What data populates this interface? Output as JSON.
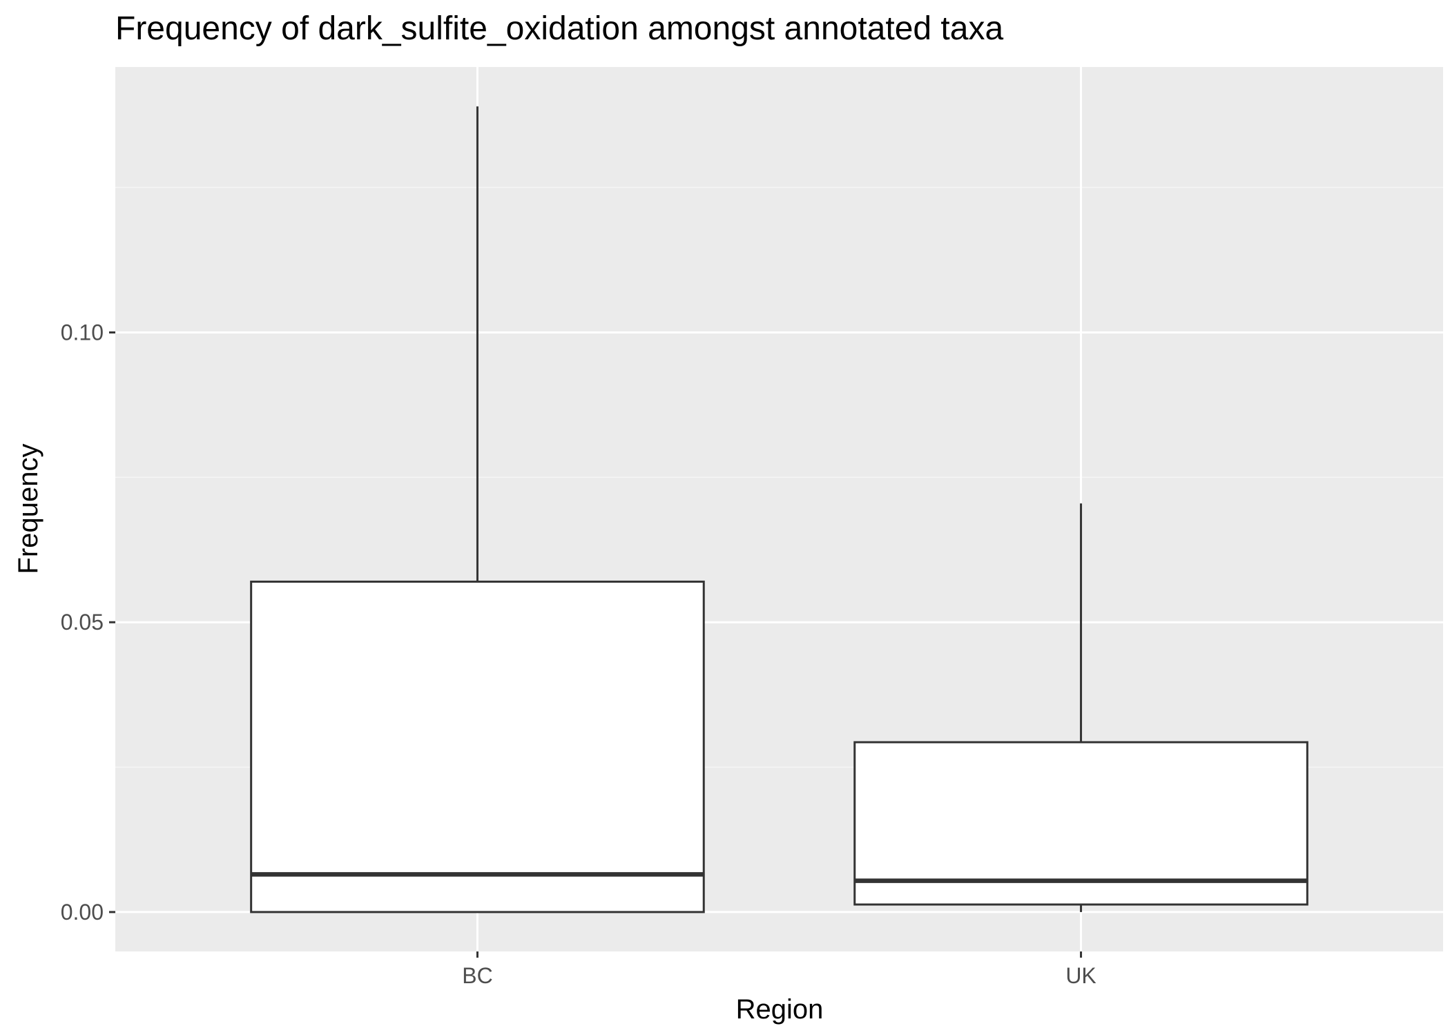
{
  "chart_data": {
    "type": "boxplot",
    "title": "Frequency of dark_sulfite_oxidation amongst annotated taxa",
    "xlabel": "Region",
    "ylabel": "Frequency",
    "categories": [
      "BC",
      "UK"
    ],
    "boxes": [
      {
        "category": "BC",
        "min": 0.0,
        "q1": 0.0,
        "median": 0.0065,
        "q3": 0.057,
        "max": 0.139
      },
      {
        "category": "UK",
        "min": 0.0,
        "q1": 0.0013,
        "median": 0.0054,
        "q3": 0.0293,
        "max": 0.0705
      }
    ],
    "y_ticks": [
      {
        "value": 0.0,
        "label": "0.00"
      },
      {
        "value": 0.05,
        "label": "0.05"
      },
      {
        "value": 0.1,
        "label": "0.10"
      }
    ],
    "ylim": [
      -0.0068,
      0.1458
    ],
    "grid": true,
    "legend": "none",
    "colors": {
      "panel_background": "#EBEBEB",
      "grid_major": "#FFFFFF",
      "grid_minor": "#F5F5F5",
      "box_fill": "#FFFFFF",
      "box_line": "#333333",
      "tick_label": "#4D4D4D"
    }
  }
}
